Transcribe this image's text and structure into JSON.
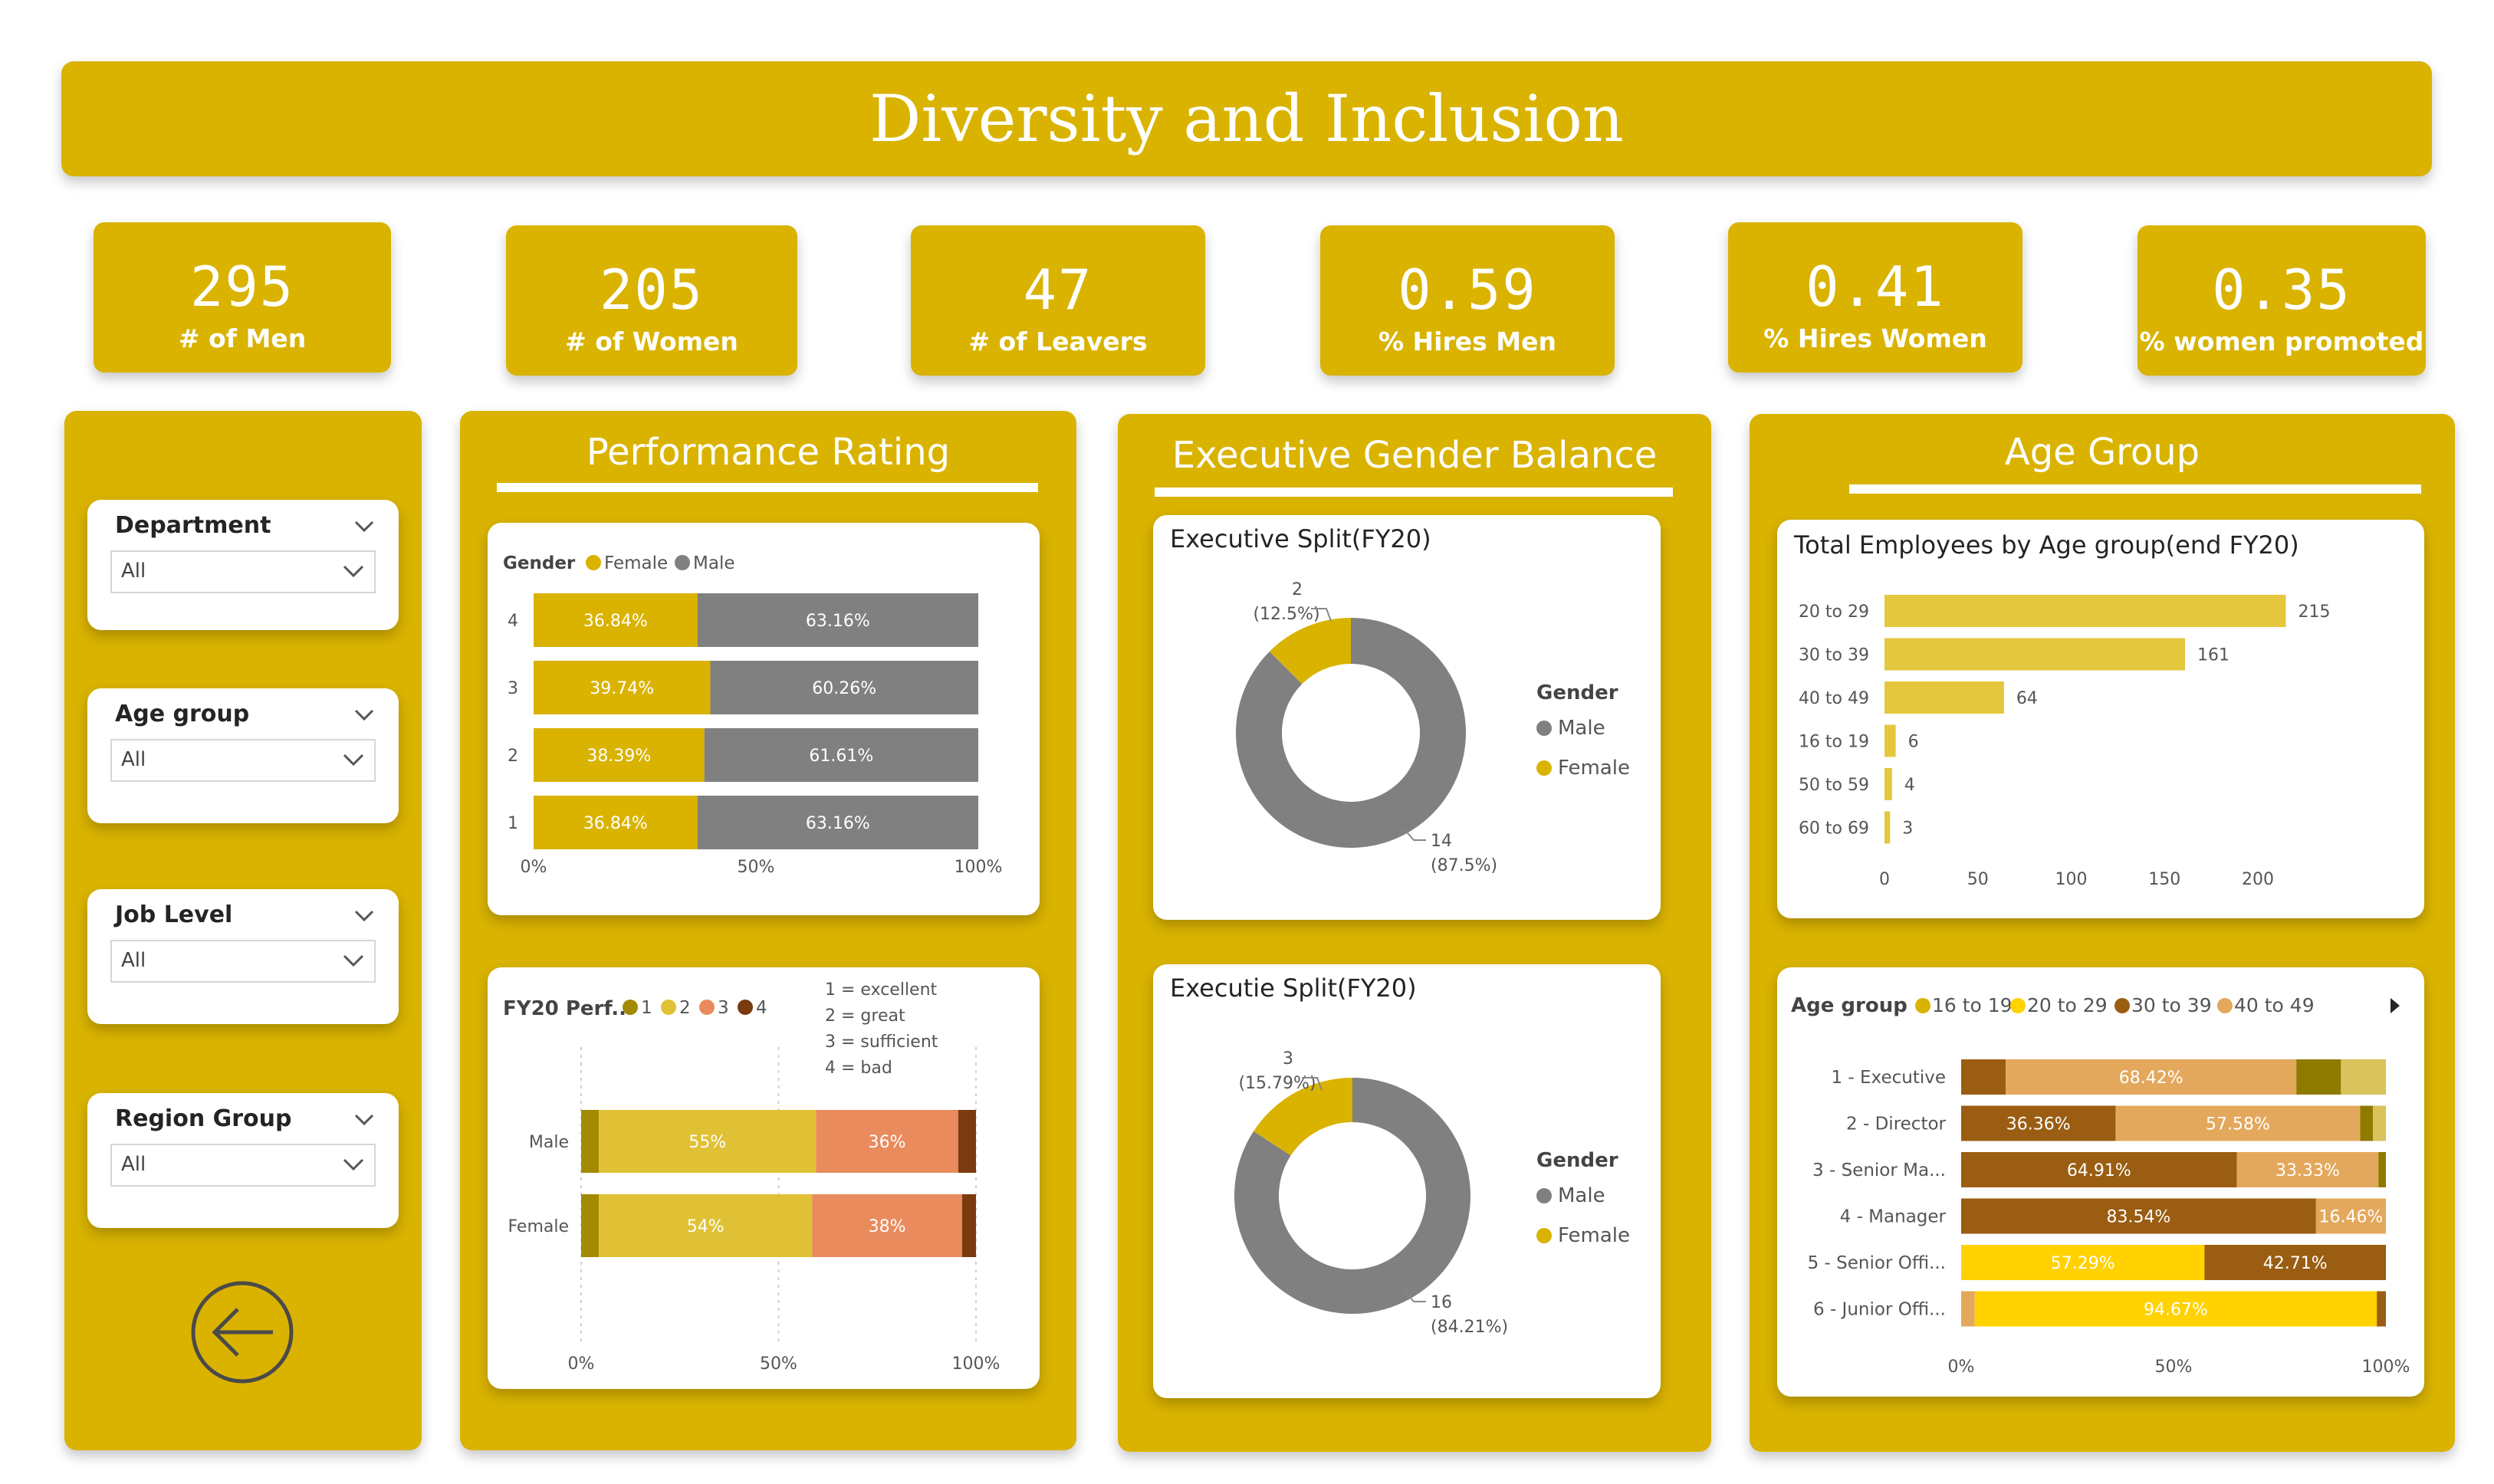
{
  "header": {
    "title": "Diversity and Inclusion"
  },
  "kpis": [
    {
      "value": "295",
      "label": "# of Men"
    },
    {
      "value": "205",
      "label": "# of Women"
    },
    {
      "value": "47",
      "label": "# of Leavers"
    },
    {
      "value": "0.59",
      "label": "% Hires Men"
    },
    {
      "value": "0.41",
      "label": "% Hires Women"
    },
    {
      "value": "0.35",
      "label": "% women promoted"
    }
  ],
  "slicers": [
    {
      "title": "Department",
      "value": "All"
    },
    {
      "title": "Age group",
      "value": "All"
    },
    {
      "title": "Job Level",
      "value": "All"
    },
    {
      "title": "Region Group",
      "value": "All"
    }
  ],
  "icons": {
    "back": "back-arrow-icon",
    "dropdown": "chevron-down-icon",
    "more": "caret-right-icon"
  },
  "colors": {
    "accent": "#d9b300",
    "male": "#808080",
    "female": "#d9b300",
    "rating1": "#a38a00",
    "rating2": "#e0c135",
    "rating3": "#e98b5d",
    "rating4": "#7a3b10"
  },
  "panels": {
    "performance": "Performance Rating",
    "executive": "Executive Gender Balance",
    "age": "Age Group"
  },
  "chart_data": [
    {
      "type": "bar",
      "orientation": "horizontal",
      "stacked": "100%",
      "title": "",
      "legend_title": "Gender",
      "categories": [
        "4",
        "3",
        "2",
        "1"
      ],
      "series": [
        {
          "name": "Female",
          "values": [
            36.84,
            39.74,
            38.39,
            36.84
          ],
          "labels": [
            "36.84%",
            "39.74%",
            "38.39%",
            "36.84%"
          ]
        },
        {
          "name": "Male",
          "values": [
            63.16,
            60.26,
            61.61,
            63.16
          ],
          "labels": [
            "63.16%",
            "60.26%",
            "61.61%",
            "63.16%"
          ]
        }
      ],
      "xticks": [
        "0%",
        "50%",
        "100%"
      ],
      "legend_position": "top-left"
    },
    {
      "type": "bar",
      "orientation": "horizontal",
      "stacked": "100%",
      "title": "FY20 Perf...",
      "categories": [
        "Male",
        "Female"
      ],
      "series": [
        {
          "name": "1",
          "values": [
            4.5,
            4.5
          ],
          "labels": [
            "",
            ""
          ]
        },
        {
          "name": "2",
          "values": [
            55,
            54
          ],
          "labels": [
            "55%",
            "54%"
          ]
        },
        {
          "name": "3",
          "values": [
            36,
            38
          ],
          "labels": [
            "36%",
            "38%"
          ]
        },
        {
          "name": "4",
          "values": [
            4.5,
            3.5
          ],
          "labels": [
            "",
            ""
          ]
        }
      ],
      "annotation": [
        "1 = excellent",
        "2 = great",
        "3 = sufficient",
        "4 = bad"
      ],
      "xticks": [
        "0%",
        "50%",
        "100%"
      ],
      "legend_position": "top-left"
    },
    {
      "type": "pie",
      "donut": true,
      "title": "Executive Split(FY20)",
      "legend_title": "Gender",
      "slices": [
        {
          "name": "Male",
          "value": 14,
          "label": "14",
          "pct": "(87.5%)"
        },
        {
          "name": "Female",
          "value": 2,
          "label": "2",
          "pct": "(12.5%)"
        }
      ],
      "legend_position": "right"
    },
    {
      "type": "pie",
      "donut": true,
      "title": "Executie Split(FY20)",
      "legend_title": "Gender",
      "slices": [
        {
          "name": "Male",
          "value": 16,
          "label": "16",
          "pct": "(84.21%)"
        },
        {
          "name": "Female",
          "value": 3,
          "label": "3",
          "pct": "(15.79%)"
        }
      ],
      "legend_position": "right"
    },
    {
      "type": "bar",
      "orientation": "horizontal",
      "title": "Total Employees by Age group(end FY20)",
      "categories": [
        "20 to 29",
        "30 to 39",
        "40 to 49",
        "16 to 19",
        "50 to 59",
        "60 to 69"
      ],
      "values": [
        215,
        161,
        64,
        6,
        4,
        3
      ],
      "xlim": [
        0,
        230
      ],
      "xticks": [
        "0",
        "50",
        "100",
        "150",
        "200"
      ]
    },
    {
      "type": "bar",
      "orientation": "horizontal",
      "stacked": "100%",
      "title": "",
      "legend_title": "Age group",
      "legend": [
        "16 to 19",
        "20 to 29",
        "30 to 39",
        "40 to 49"
      ],
      "categories": [
        "1 - Executive",
        "2 - Director",
        "3 - Senior Ma...",
        "4 - Manager",
        "5 - Senior Offi...",
        "6 - Junior Offi..."
      ],
      "rows": [
        {
          "segments": [
            {
              "color": "#9a5d12",
              "value": 10.5,
              "label": ""
            },
            {
              "color": "#e3a85c",
              "value": 68.42,
              "label": "68.42%"
            },
            {
              "color": "#8f7a00",
              "value": 10.5,
              "label": ""
            },
            {
              "color": "#d9c35a",
              "value": 10.58,
              "label": ""
            }
          ]
        },
        {
          "segments": [
            {
              "color": "#9a5d12",
              "value": 36.36,
              "label": "36.36%"
            },
            {
              "color": "#e3a85c",
              "value": 57.58,
              "label": "57.58%"
            },
            {
              "color": "#8f7a00",
              "value": 3,
              "label": ""
            },
            {
              "color": "#d9c35a",
              "value": 3.06,
              "label": ""
            }
          ]
        },
        {
          "segments": [
            {
              "color": "#9a5d12",
              "value": 64.91,
              "label": "64.91%"
            },
            {
              "color": "#e3a85c",
              "value": 33.33,
              "label": "33.33%"
            },
            {
              "color": "#8f7a00",
              "value": 1.76,
              "label": ""
            }
          ]
        },
        {
          "segments": [
            {
              "color": "#9a5d12",
              "value": 83.54,
              "label": "83.54%"
            },
            {
              "color": "#e3a85c",
              "value": 16.46,
              "label": "16.46%"
            }
          ]
        },
        {
          "segments": [
            {
              "color": "#ffd200",
              "value": 57.29,
              "label": "57.29%"
            },
            {
              "color": "#9a5d12",
              "value": 42.71,
              "label": "42.71%"
            }
          ]
        },
        {
          "segments": [
            {
              "color": "#e3a85c",
              "value": 3.2,
              "label": ""
            },
            {
              "color": "#ffd200",
              "value": 94.67,
              "label": "94.67%"
            },
            {
              "color": "#9a5d12",
              "value": 2.13,
              "label": ""
            }
          ]
        }
      ],
      "xticks": [
        "0%",
        "50%",
        "100%"
      ],
      "legend_position": "top-left"
    }
  ]
}
